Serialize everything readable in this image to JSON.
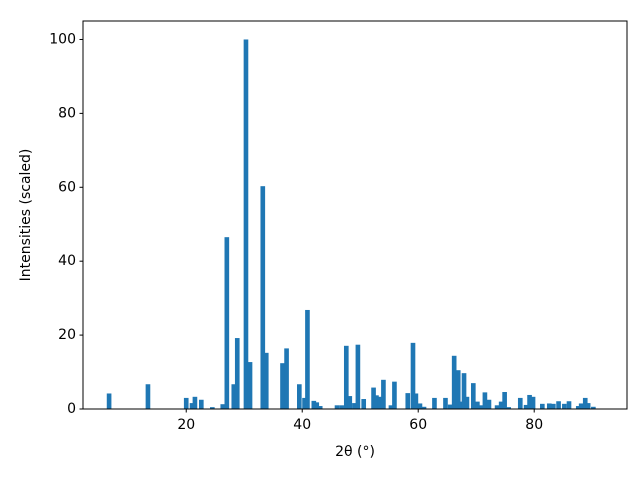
{
  "chart_data": {
    "type": "bar",
    "xlabel": "2θ (°)",
    "ylabel": "Intensities (scaled)",
    "color": "#1f77b4",
    "x": [
      6.7,
      13.4,
      20.0,
      21.0,
      21.5,
      22.6,
      24.5,
      26.3,
      27.0,
      28.2,
      28.8,
      30.3,
      31.0,
      33.2,
      33.8,
      36.6,
      37.3,
      39.5,
      40.4,
      40.9,
      42.0,
      42.5,
      43.1,
      46.0,
      46.8,
      47.6,
      48.2,
      49.0,
      49.6,
      50.6,
      52.3,
      52.8,
      53.4,
      54.0,
      55.3,
      55.9,
      58.2,
      59.1,
      59.6,
      60.3,
      61.0,
      62.8,
      64.7,
      65.5,
      66.2,
      66.9,
      67.4,
      67.9,
      68.4,
      69.5,
      70.2,
      70.9,
      71.5,
      72.2,
      73.6,
      74.3,
      74.9,
      75.6,
      77.6,
      78.6,
      79.2,
      79.8,
      81.4,
      82.6,
      83.3,
      84.2,
      85.2,
      86.0,
      87.6,
      88.1,
      88.8,
      89.3,
      90.2
    ],
    "values": [
      4.2,
      6.7,
      3.0,
      1.6,
      3.3,
      2.5,
      0.5,
      1.3,
      46.5,
      6.7,
      19.2,
      100,
      12.7,
      60.3,
      15.2,
      12.4,
      16.4,
      6.7,
      3.0,
      26.8,
      2.2,
      1.8,
      0.8,
      1.0,
      1.0,
      17.1,
      3.5,
      1.6,
      17.4,
      2.7,
      5.8,
      3.7,
      3.3,
      7.9,
      1.0,
      7.4,
      4.3,
      17.9,
      4.2,
      1.5,
      0.6,
      3.0,
      3.0,
      1.2,
      14.4,
      10.5,
      2.0,
      9.7,
      3.3,
      7.0,
      2.0,
      1.0,
      4.5,
      2.5,
      1.0,
      2.0,
      4.6,
      0.5,
      3.0,
      1.1,
      3.8,
      3.3,
      1.4,
      1.5,
      1.4,
      2.1,
      1.4,
      2.1,
      0.8,
      1.5,
      3.0,
      1.6,
      0.6
    ],
    "xlim": [
      2.2,
      96.0
    ],
    "ylim": [
      0,
      105
    ],
    "xticks": [
      20,
      40,
      60,
      80
    ],
    "yticks": [
      0,
      20,
      40,
      60,
      80,
      100
    ],
    "grid": false
  }
}
